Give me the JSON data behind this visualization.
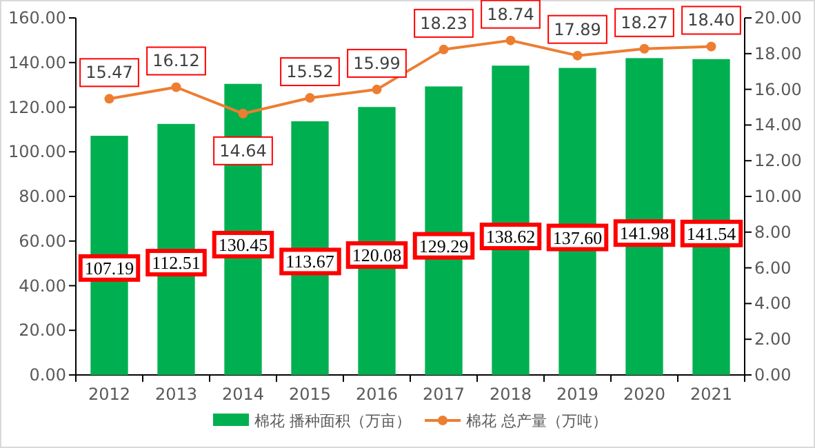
{
  "chart_data": {
    "type": "bar",
    "categories": [
      "2012",
      "2013",
      "2014",
      "2015",
      "2016",
      "2017",
      "2018",
      "2019",
      "2020",
      "2021"
    ],
    "series": [
      {
        "name": "棉花 播种面积（万亩）",
        "color": "#00b050",
        "values": [
          107.19,
          112.51,
          130.45,
          113.67,
          120.08,
          129.29,
          138.62,
          137.6,
          141.98,
          141.54
        ],
        "value_labels": [
          "107.19",
          "112.51",
          "130.45",
          "113.67",
          "120.08",
          "129.29",
          "138.62",
          "137.60",
          "141.98",
          "141.54"
        ]
      },
      {
        "name": "棉花 总产量（万吨）",
        "type": "line",
        "axis": "y2",
        "color": "#ed7d31",
        "marker": "circle",
        "values": [
          15.47,
          16.12,
          14.64,
          15.52,
          15.99,
          18.23,
          18.74,
          17.89,
          18.27,
          18.4
        ],
        "value_labels": [
          "15.47",
          "16.12",
          "14.64",
          "15.52",
          "15.99",
          "18.23",
          "18.74",
          "17.89",
          "18.27",
          "18.40"
        ]
      }
    ],
    "ylim": [
      0,
      160
    ],
    "yticks": [
      {
        "value": 0,
        "label": "0.00"
      },
      {
        "value": 20,
        "label": "20.00"
      },
      {
        "value": 40,
        "label": "40.00"
      },
      {
        "value": 60,
        "label": "60.00"
      },
      {
        "value": 80,
        "label": "80.00"
      },
      {
        "value": 100,
        "label": "100.00"
      },
      {
        "value": 120,
        "label": "120.00"
      },
      {
        "value": 140,
        "label": "140.00"
      },
      {
        "value": 160,
        "label": "160.00"
      }
    ],
    "y2lim": [
      0,
      20
    ],
    "y2ticks": [
      {
        "value": 0,
        "label": "0.00"
      },
      {
        "value": 2,
        "label": "2.00"
      },
      {
        "value": 4,
        "label": "4.00"
      },
      {
        "value": 6,
        "label": "6.00"
      },
      {
        "value": 8,
        "label": "8.00"
      },
      {
        "value": 10,
        "label": "10.00"
      },
      {
        "value": 12,
        "label": "12.00"
      },
      {
        "value": 14,
        "label": "14.00"
      },
      {
        "value": 16,
        "label": "16.00"
      },
      {
        "value": 18,
        "label": "18.00"
      },
      {
        "value": 20,
        "label": "20.00"
      }
    ],
    "grid": false,
    "legend": "bottom"
  }
}
